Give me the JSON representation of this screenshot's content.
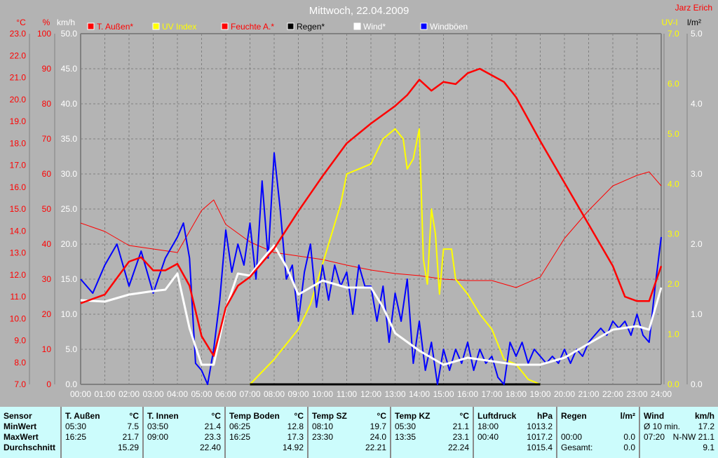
{
  "header": {
    "title": "Mittwoch, 22.04.2009",
    "author": "Jarz Erich"
  },
  "chart_data": {
    "type": "line",
    "title": "Mittwoch, 22.04.2009",
    "x_ticks": [
      "00:00",
      "01:00",
      "02:00",
      "03:00",
      "04:00",
      "05:00",
      "06:00",
      "07:00",
      "08:00",
      "09:00",
      "10:00",
      "11:00",
      "12:00",
      "13:00",
      "14:00",
      "15:00",
      "16:00",
      "17:00",
      "18:00",
      "19:00",
      "20:00",
      "21:00",
      "22:00",
      "23:00",
      "24:00"
    ],
    "xlim": [
      "00:00",
      "24:00"
    ],
    "grid": true,
    "legend_placement": "top",
    "axes": {
      "temp": {
        "unit": "°C",
        "range": [
          7,
          23
        ],
        "ticks": [
          "23.0",
          "22.0",
          "21.0",
          "20.0",
          "19.0",
          "18.0",
          "17.0",
          "16.0",
          "15.0",
          "14.0",
          "13.0",
          "12.0",
          "11.0",
          "10.0",
          "9.0",
          "8.0",
          "7.0"
        ],
        "color": "#ff0000"
      },
      "humidity": {
        "unit": "%",
        "range": [
          0,
          100
        ],
        "ticks": [
          "100",
          "90",
          "80",
          "70",
          "60",
          "50",
          "40",
          "30",
          "20",
          "10",
          "0"
        ],
        "color": "#ff0000"
      },
      "wind": {
        "unit": "km/h",
        "range": [
          0,
          50
        ],
        "ticks": [
          "50.0",
          "45.0",
          "40.0",
          "35.0",
          "30.0",
          "25.0",
          "20.0",
          "15.0",
          "10.0",
          "5.0",
          "0.0"
        ],
        "color": "#ffffff"
      },
      "uv": {
        "unit": "UV-I",
        "range": [
          0,
          7
        ],
        "ticks": [
          "7.0",
          "6.0",
          "5.0",
          "4.0",
          "3.0",
          "2.0",
          "1.0",
          "0.0"
        ],
        "color": "#ffff00"
      },
      "rain": {
        "unit": "l/m²",
        "range": [
          0,
          5
        ],
        "ticks": [
          "5.0",
          "4.0",
          "3.0",
          "2.0",
          "1.0",
          "0.0"
        ],
        "color": "#ffffff"
      }
    },
    "series": [
      {
        "name": "T. Außen*",
        "axis": "temp",
        "color": "#ff0000",
        "width": 2.5,
        "points": [
          [
            "00:00",
            10.7
          ],
          [
            "01:00",
            11.1
          ],
          [
            "02:00",
            12.6
          ],
          [
            "02:30",
            12.8
          ],
          [
            "03:00",
            12.2
          ],
          [
            "03:30",
            12.2
          ],
          [
            "04:00",
            12.5
          ],
          [
            "04:30",
            11.5
          ],
          [
            "05:00",
            9.2
          ],
          [
            "05:30",
            8.3
          ],
          [
            "06:00",
            10.5
          ],
          [
            "06:30",
            11.5
          ],
          [
            "07:00",
            11.9
          ],
          [
            "08:00",
            13.2
          ],
          [
            "09:00",
            14.9
          ],
          [
            "10:00",
            16.5
          ],
          [
            "11:00",
            18.0
          ],
          [
            "12:00",
            18.9
          ],
          [
            "13:00",
            19.7
          ],
          [
            "13:30",
            20.2
          ],
          [
            "14:00",
            20.9
          ],
          [
            "14:30",
            20.4
          ],
          [
            "15:00",
            20.8
          ],
          [
            "15:30",
            20.7
          ],
          [
            "16:00",
            21.2
          ],
          [
            "16:30",
            21.4
          ],
          [
            "17:00",
            21.1
          ],
          [
            "17:30",
            20.8
          ],
          [
            "18:00",
            20.1
          ],
          [
            "19:00",
            18.1
          ],
          [
            "20:00",
            16.2
          ],
          [
            "21:00",
            14.3
          ],
          [
            "22:00",
            12.4
          ],
          [
            "22:30",
            11.0
          ],
          [
            "23:00",
            10.8
          ],
          [
            "23:30",
            10.8
          ],
          [
            "24:00",
            12.4
          ]
        ]
      },
      {
        "name": "UV Index",
        "axis": "uv",
        "color": "#ffff00",
        "width": 2,
        "points": [
          [
            "07:00",
            0
          ],
          [
            "08:00",
            0.5
          ],
          [
            "09:00",
            1.1
          ],
          [
            "09:30",
            1.6
          ],
          [
            "10:00",
            2.4
          ],
          [
            "10:45",
            3.6
          ],
          [
            "11:00",
            4.2
          ],
          [
            "11:30",
            4.3
          ],
          [
            "12:00",
            4.4
          ],
          [
            "12:30",
            4.9
          ],
          [
            "13:00",
            5.1
          ],
          [
            "13:20",
            4.9
          ],
          [
            "13:30",
            4.3
          ],
          [
            "13:45",
            4.5
          ],
          [
            "14:00",
            5.1
          ],
          [
            "14:10",
            2.5
          ],
          [
            "14:20",
            2.0
          ],
          [
            "14:30",
            3.5
          ],
          [
            "14:40",
            3.0
          ],
          [
            "14:50",
            1.8
          ],
          [
            "15:00",
            2.7
          ],
          [
            "15:20",
            2.7
          ],
          [
            "15:30",
            2.1
          ],
          [
            "16:00",
            1.8
          ],
          [
            "16:30",
            1.4
          ],
          [
            "17:00",
            1.1
          ],
          [
            "17:30",
            0.5
          ],
          [
            "18:00",
            0.4
          ],
          [
            "18:30",
            0.1
          ],
          [
            "19:00",
            0
          ]
        ]
      },
      {
        "name": "Feuchte A.*",
        "axis": "humidity",
        "color": "#ff0000",
        "width": 1,
        "points": [
          [
            "00:00",
            46
          ],
          [
            "01:00",
            43.6
          ],
          [
            "02:00",
            39.6
          ],
          [
            "03:00",
            38.6
          ],
          [
            "04:00",
            37.6
          ],
          [
            "05:00",
            49.6
          ],
          [
            "05:30",
            52.6
          ],
          [
            "06:00",
            45.6
          ],
          [
            "07:00",
            40.6
          ],
          [
            "08:00",
            37.6
          ],
          [
            "09:00",
            36.6
          ],
          [
            "10:00",
            35.6
          ],
          [
            "11:00",
            34
          ],
          [
            "12:00",
            32.6
          ],
          [
            "13:00",
            31.6
          ],
          [
            "14:00",
            31
          ],
          [
            "15:00",
            30
          ],
          [
            "16:00",
            29.6
          ],
          [
            "17:00",
            29.6
          ],
          [
            "18:00",
            27.6
          ],
          [
            "19:00",
            30.6
          ],
          [
            "20:00",
            41.6
          ],
          [
            "21:00",
            49.6
          ],
          [
            "22:00",
            56.6
          ],
          [
            "23:00",
            59.6
          ],
          [
            "23:30",
            60.6
          ],
          [
            "24:00",
            56.6
          ]
        ]
      },
      {
        "name": "Regen*",
        "axis": "rain",
        "color": "#000000",
        "width": 3,
        "points": [
          [
            "07:00",
            0
          ],
          [
            "19:00",
            0
          ]
        ]
      },
      {
        "name": "Wind*",
        "axis": "wind",
        "color": "#ffffff",
        "width": 3,
        "points": [
          [
            "00:00",
            12
          ],
          [
            "01:00",
            11.8
          ],
          [
            "02:00",
            12.8
          ],
          [
            "03:00",
            13.3
          ],
          [
            "03:30",
            13.5
          ],
          [
            "04:00",
            15.8
          ],
          [
            "04:30",
            8
          ],
          [
            "05:00",
            2.8
          ],
          [
            "05:30",
            2.8
          ],
          [
            "06:00",
            10.8
          ],
          [
            "06:30",
            15.8
          ],
          [
            "07:00",
            15.5
          ],
          [
            "07:30",
            17.8
          ],
          [
            "08:00",
            19.8
          ],
          [
            "08:30",
            16.8
          ],
          [
            "09:00",
            12.8
          ],
          [
            "10:00",
            14.8
          ],
          [
            "11:00",
            13.8
          ],
          [
            "12:00",
            13.8
          ],
          [
            "12:30",
            11
          ],
          [
            "13:00",
            7.3
          ],
          [
            "14:00",
            4.8
          ],
          [
            "15:00",
            2.8
          ],
          [
            "16:00",
            3.8
          ],
          [
            "17:00",
            3.3
          ],
          [
            "18:00",
            2.8
          ],
          [
            "19:00",
            2.8
          ],
          [
            "20:00",
            3.8
          ],
          [
            "21:00",
            5.8
          ],
          [
            "22:00",
            7.8
          ],
          [
            "23:00",
            8.3
          ],
          [
            "23:30",
            7.8
          ],
          [
            "24:00",
            13.8
          ]
        ]
      },
      {
        "name": "Windböen",
        "axis": "wind",
        "color": "#0000ff",
        "width": 2,
        "points": [
          [
            "00:00",
            15
          ],
          [
            "00:30",
            13
          ],
          [
            "01:00",
            17
          ],
          [
            "01:30",
            20
          ],
          [
            "02:00",
            14
          ],
          [
            "02:30",
            19
          ],
          [
            "03:00",
            13
          ],
          [
            "03:30",
            18
          ],
          [
            "04:00",
            21
          ],
          [
            "04:15",
            23
          ],
          [
            "04:30",
            18
          ],
          [
            "04:45",
            3
          ],
          [
            "05:00",
            2
          ],
          [
            "05:15",
            0
          ],
          [
            "05:30",
            5
          ],
          [
            "05:45",
            12
          ],
          [
            "06:00",
            22
          ],
          [
            "06:15",
            16
          ],
          [
            "06:30",
            20
          ],
          [
            "06:45",
            17
          ],
          [
            "07:00",
            23
          ],
          [
            "07:15",
            15
          ],
          [
            "07:30",
            29
          ],
          [
            "07:45",
            18
          ],
          [
            "08:00",
            33
          ],
          [
            "08:15",
            25
          ],
          [
            "08:30",
            15
          ],
          [
            "08:45",
            17
          ],
          [
            "09:00",
            9
          ],
          [
            "09:15",
            16
          ],
          [
            "09:30",
            20
          ],
          [
            "09:45",
            11
          ],
          [
            "10:00",
            17
          ],
          [
            "10:15",
            12
          ],
          [
            "10:30",
            17
          ],
          [
            "10:45",
            14
          ],
          [
            "11:00",
            16
          ],
          [
            "11:15",
            10
          ],
          [
            "11:30",
            17
          ],
          [
            "11:45",
            14
          ],
          [
            "12:00",
            14
          ],
          [
            "12:15",
            9
          ],
          [
            "12:30",
            14
          ],
          [
            "12:45",
            6
          ],
          [
            "13:00",
            13
          ],
          [
            "13:15",
            9
          ],
          [
            "13:30",
            15
          ],
          [
            "13:45",
            3
          ],
          [
            "14:00",
            9
          ],
          [
            "14:15",
            2
          ],
          [
            "14:30",
            6
          ],
          [
            "14:45",
            0
          ],
          [
            "15:00",
            5
          ],
          [
            "15:15",
            2
          ],
          [
            "15:30",
            5
          ],
          [
            "15:45",
            3
          ],
          [
            "16:00",
            6
          ],
          [
            "16:15",
            2
          ],
          [
            "16:30",
            5
          ],
          [
            "16:45",
            3
          ],
          [
            "17:00",
            4
          ],
          [
            "17:15",
            1
          ],
          [
            "17:30",
            0
          ],
          [
            "17:45",
            6
          ],
          [
            "18:00",
            4
          ],
          [
            "18:15",
            6
          ],
          [
            "18:30",
            3
          ],
          [
            "18:45",
            5
          ],
          [
            "19:00",
            4
          ],
          [
            "19:15",
            3
          ],
          [
            "19:30",
            4
          ],
          [
            "19:45",
            3
          ],
          [
            "20:00",
            5
          ],
          [
            "20:15",
            3
          ],
          [
            "20:30",
            5
          ],
          [
            "20:45",
            4
          ],
          [
            "21:00",
            6
          ],
          [
            "21:15",
            7
          ],
          [
            "21:30",
            8
          ],
          [
            "21:45",
            7
          ],
          [
            "22:00",
            9
          ],
          [
            "22:15",
            8
          ],
          [
            "22:30",
            9
          ],
          [
            "22:45",
            7
          ],
          [
            "23:00",
            10
          ],
          [
            "23:15",
            7
          ],
          [
            "23:30",
            6
          ],
          [
            "23:45",
            14
          ],
          [
            "24:00",
            21
          ]
        ]
      }
    ]
  },
  "table": {
    "sensor": {
      "h": "Sensor",
      "rows": [
        "MinWert",
        "MaxWert",
        "Durchschnitt"
      ]
    },
    "cols": [
      {
        "h": "T. Außen",
        "u": "°C",
        "min_t": "05:30",
        "min": "7.5",
        "max_t": "16:25",
        "max": "21.7",
        "avg": "15.29"
      },
      {
        "h": "T. Innen",
        "u": "°C",
        "min_t": "03:50",
        "min": "21.4",
        "max_t": "09:00",
        "max": "23.3",
        "avg": "22.40"
      },
      {
        "h": "Temp Boden",
        "u": "°C",
        "min_t": "06:25",
        "min": "12.8",
        "max_t": "16:25",
        "max": "17.3",
        "avg": "14.92"
      },
      {
        "h": "Temp SZ",
        "u": "°C",
        "min_t": "08:10",
        "min": "19.7",
        "max_t": "23:30",
        "max": "24.0",
        "avg": "22.21"
      },
      {
        "h": "Temp KZ",
        "u": "°C",
        "min_t": "05:30",
        "min": "21.1",
        "max_t": "13:35",
        "max": "23.1",
        "avg": "22.24"
      },
      {
        "h": "Luftdruck",
        "u": "hPa",
        "min_t": "18:00",
        "min": "1013.2",
        "max_t": "00:40",
        "max": "1017.2",
        "avg": "1015.4"
      },
      {
        "h": "Regen",
        "u": "l/m²",
        "min_t": "",
        "min": "",
        "max_t": "00:00",
        "max": "0.0",
        "avg_t": "Gesamt:",
        "avg": "0.0"
      },
      {
        "h": "Wind",
        "u": "km/h",
        "min_t": "Ø 10 min.",
        "min": "17.2",
        "max_t": "07:20",
        "max": "N-NW 21.1",
        "avg": "9.1"
      }
    ]
  }
}
